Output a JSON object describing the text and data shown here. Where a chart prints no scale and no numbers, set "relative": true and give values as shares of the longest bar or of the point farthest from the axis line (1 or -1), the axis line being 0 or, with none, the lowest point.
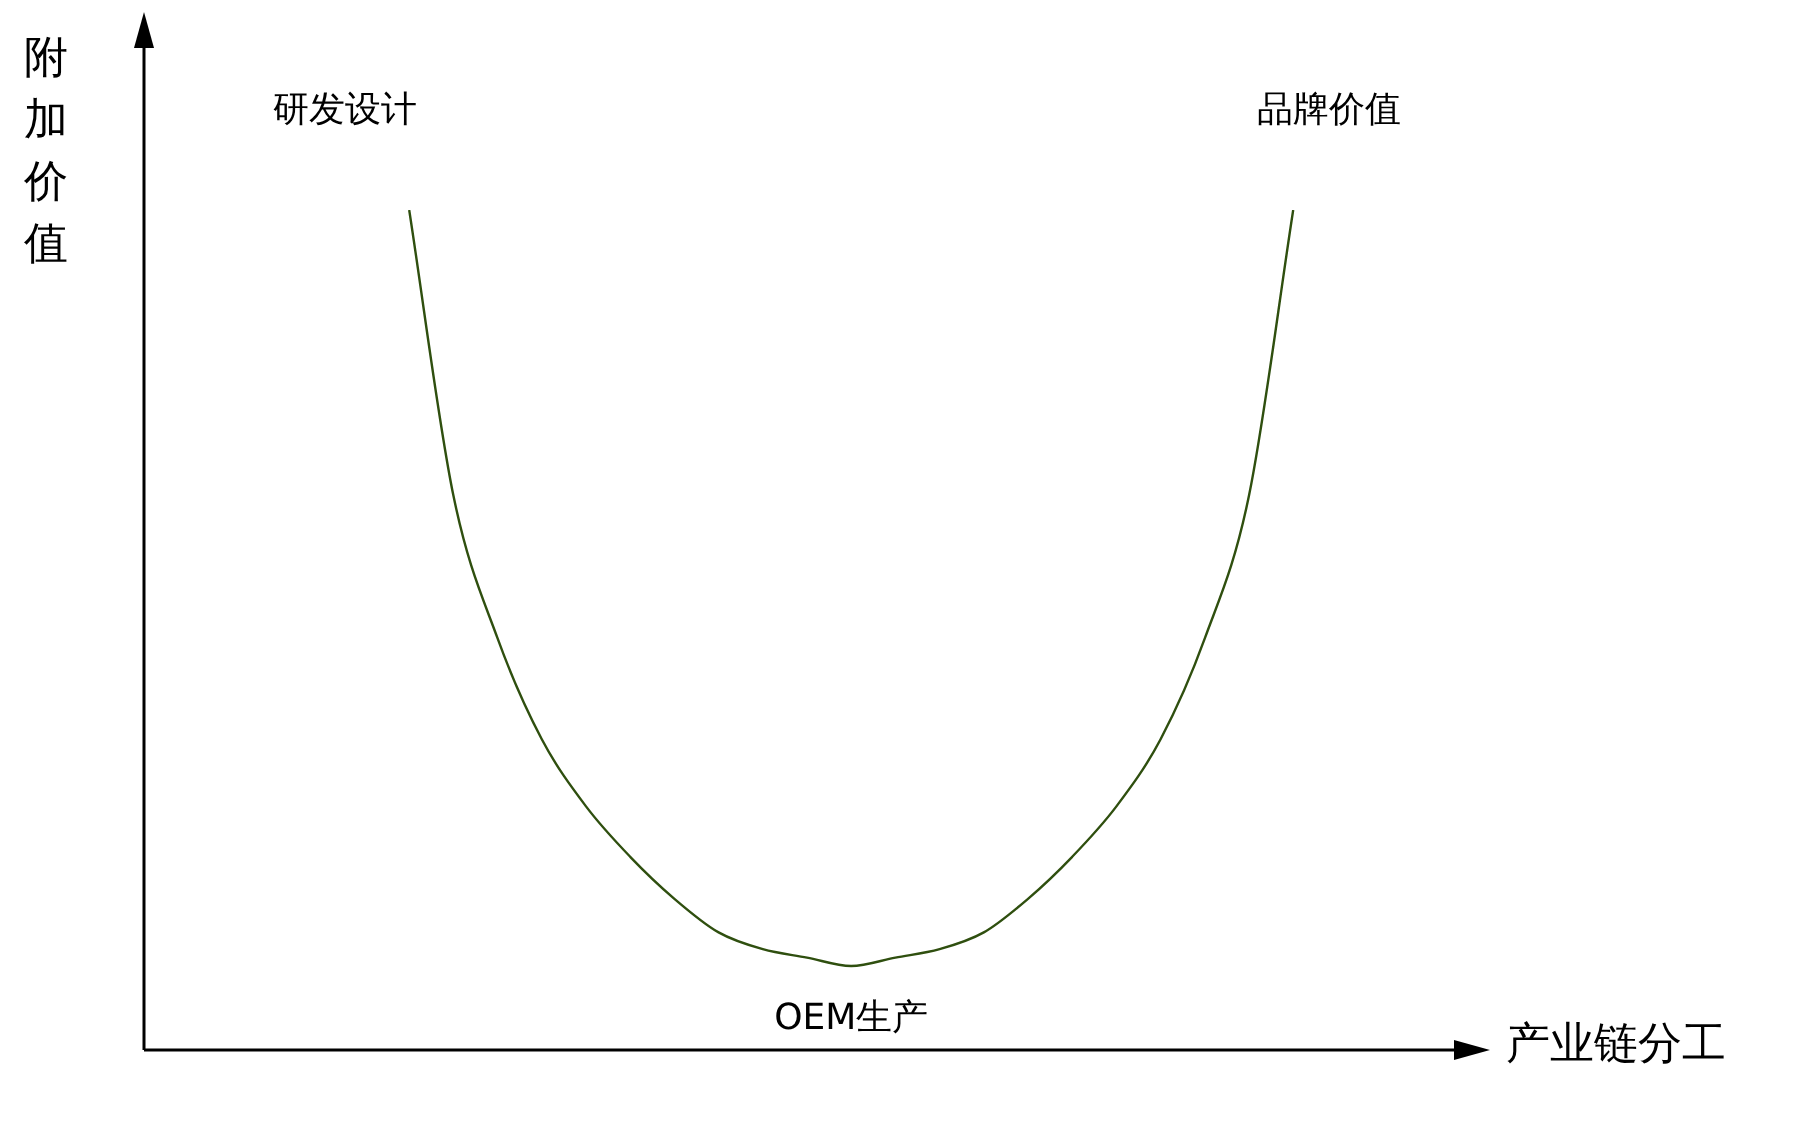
{
  "chart_data": {
    "type": "line",
    "relative": true,
    "xlabel": "产业链分工",
    "ylabel": "附加价值",
    "annotations": [
      "研发设计",
      "品牌价值",
      "OEM生产"
    ],
    "categories": [
      null,
      null,
      null,
      null,
      null,
      null,
      null,
      null,
      null,
      null,
      null,
      null,
      null,
      null,
      null,
      null,
      null,
      null,
      null,
      null,
      null,
      null,
      null,
      null,
      null,
      null,
      null,
      null,
      null,
      null,
      null
    ],
    "series": [
      {
        "color": "#2f4f0f",
        "values": [
          null,
          null,
          null,
          null,
          null,
          null,
          1.0,
          0.66,
          0.49,
          0.37,
          0.29,
          0.23,
          0.18,
          0.14,
          0.12,
          0.11,
          0.1,
          0.11,
          0.12,
          0.14,
          0.18,
          0.23,
          0.29,
          0.37,
          0.49,
          0.66,
          1.0,
          null,
          null,
          null,
          null
        ]
      }
    ],
    "legend": false,
    "marker": "none",
    "line_style": "solid"
  }
}
